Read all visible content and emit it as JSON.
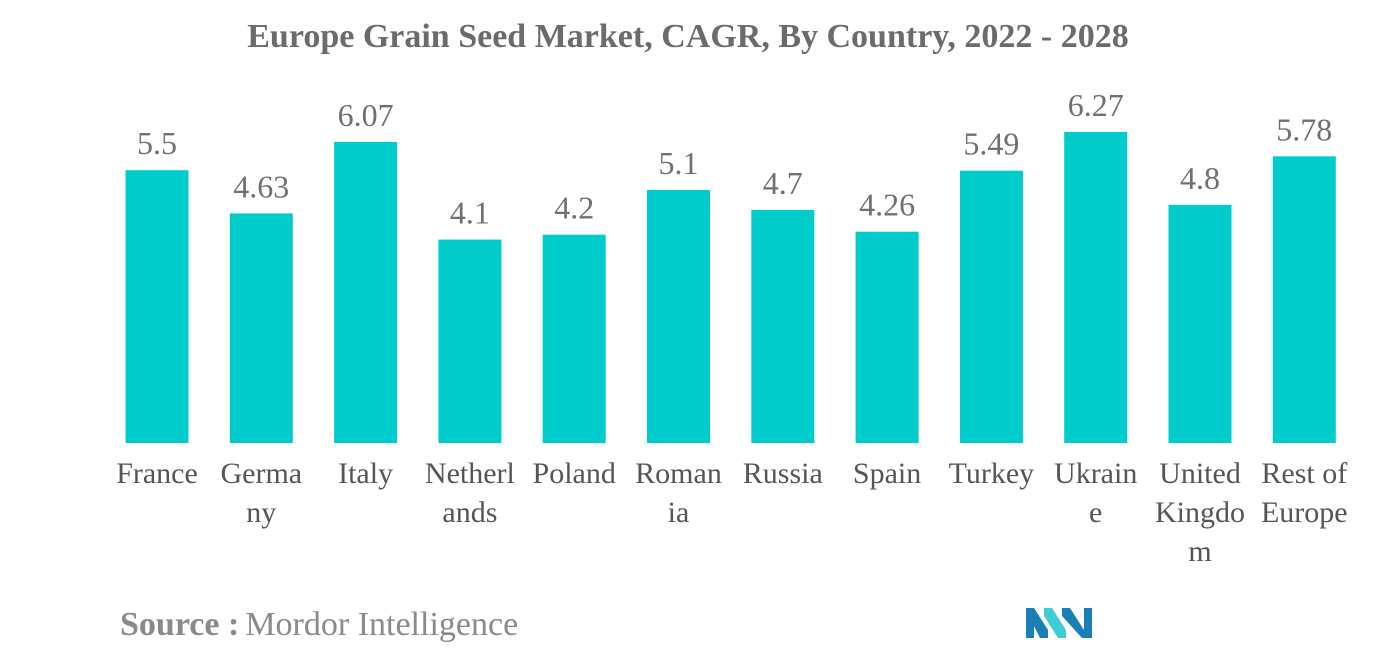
{
  "chart_data": {
    "type": "bar",
    "title": "Europe Grain Seed Market, CAGR, By Country, 2022 - 2028",
    "categories": [
      "France",
      "Germany",
      "Italy",
      "Netherlands",
      "Poland",
      "Romania",
      "Russia",
      "Spain",
      "Turkey",
      "Ukraine",
      "United Kingdom",
      "Rest of Europe"
    ],
    "category_lines": [
      [
        "France"
      ],
      [
        "Germa",
        "ny"
      ],
      [
        "Italy"
      ],
      [
        "Netherl",
        "ands"
      ],
      [
        "Poland"
      ],
      [
        "Roman",
        "ia"
      ],
      [
        "Russia"
      ],
      [
        "Spain"
      ],
      [
        "Turkey"
      ],
      [
        "Ukrain",
        "e"
      ],
      [
        "United",
        "Kingdo",
        "m"
      ],
      [
        "Rest of",
        "Europe"
      ]
    ],
    "values": [
      5.5,
      4.63,
      6.07,
      4.1,
      4.2,
      5.1,
      4.7,
      4.26,
      5.49,
      6.27,
      4.8,
      5.78
    ],
    "value_labels": [
      "5.5",
      "4.63",
      "6.07",
      "4.1",
      "4.2",
      "5.1",
      "4.7",
      "4.26",
      "5.49",
      "6.27",
      "4.8",
      "5.78"
    ],
    "xlabel": "",
    "ylabel": "",
    "ylim": [
      0,
      7
    ],
    "grid": false,
    "bar_color": "#00cccc"
  },
  "source": {
    "label": "Source :",
    "text": "Mordor Intelligence"
  },
  "logo": {
    "icon": "mordor-intelligence-logo",
    "colors": [
      "#1a7fb5",
      "#3ecdd4"
    ]
  }
}
